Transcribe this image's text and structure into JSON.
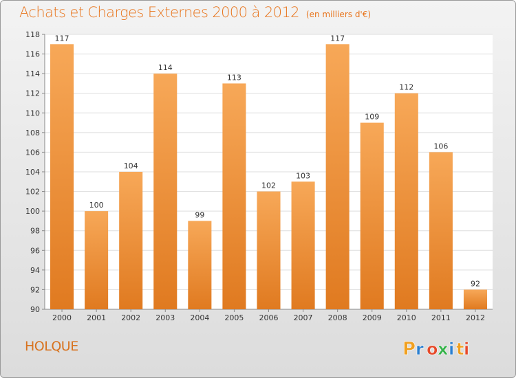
{
  "title": "Achats et Charges Externes 2000 à 2012",
  "unit": "(en milliers d'€)",
  "commune": "HOLQUE",
  "logo": {
    "letters": [
      "P",
      "r",
      "o",
      "x",
      "i",
      "t",
      "i"
    ],
    "colors": [
      "#f0a020",
      "#2a7fd0",
      "#e64a2a",
      "#36b24a",
      "#2a7fd0",
      "#f0a020",
      "#e64a2a"
    ]
  },
  "colors": {
    "bar_top": "#f7a858",
    "bar_bottom": "#e07a20",
    "title": "#e8751d"
  },
  "chart_data": {
    "type": "bar",
    "title": "Achats et Charges Externes 2000 à 2012",
    "categories": [
      "2000",
      "2001",
      "2002",
      "2003",
      "2004",
      "2005",
      "2006",
      "2007",
      "2008",
      "2009",
      "2010",
      "2011",
      "2012"
    ],
    "values": [
      117,
      100,
      104,
      114,
      99,
      113,
      102,
      103,
      117,
      109,
      112,
      106,
      92
    ],
    "ylim": [
      90,
      118
    ],
    "yticks": [
      90,
      92,
      94,
      96,
      98,
      100,
      102,
      104,
      106,
      108,
      110,
      112,
      114,
      116,
      118
    ],
    "grid": true,
    "xlabel": "",
    "ylabel": ""
  }
}
